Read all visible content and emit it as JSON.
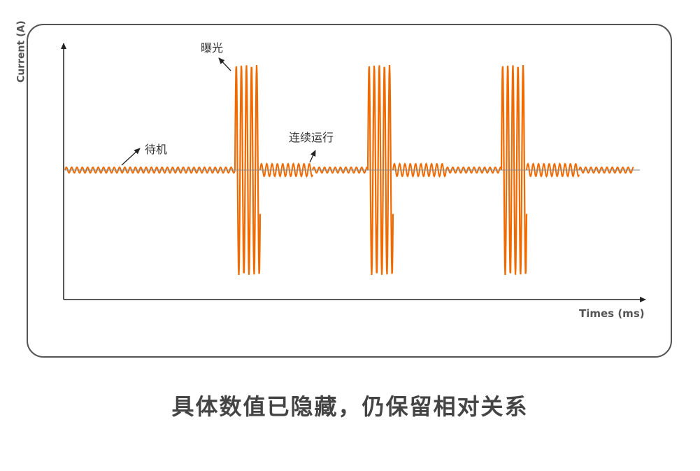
{
  "chart_data": {
    "type": "line",
    "xlabel": "Times (ms)",
    "ylabel": "Current (A)",
    "line_color": "#F06A00",
    "baseline_color": "#888888",
    "axis_color": "#222222",
    "values_hidden": true,
    "segments": [
      {
        "state": "standby",
        "duration": 243,
        "amplitude": 4
      },
      {
        "state": "exposure",
        "duration": 36,
        "amplitude": 150
      },
      {
        "state": "running",
        "duration": 75,
        "amplitude": 9
      },
      {
        "state": "standby",
        "duration": 79,
        "amplitude": 4
      },
      {
        "state": "exposure",
        "duration": 36,
        "amplitude": 150
      },
      {
        "state": "running",
        "duration": 76,
        "amplitude": 9
      },
      {
        "state": "standby",
        "duration": 79,
        "amplitude": 4
      },
      {
        "state": "exposure",
        "duration": 36,
        "amplitude": 150
      },
      {
        "state": "running",
        "duration": 75,
        "amplitude": 9
      },
      {
        "state": "standby",
        "duration": 78,
        "amplitude": 4
      }
    ],
    "annotations": {
      "standby": "待机",
      "exposure": "曝光",
      "running": "连续运行"
    }
  },
  "caption": "具体数值已隐藏，仍保留相对关系"
}
